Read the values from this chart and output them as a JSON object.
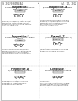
{
  "background_color": "#f5f5f5",
  "page_color": "#ffffff",
  "text_color": "#1a1a1a",
  "light_text": "#444444",
  "header_left": "US 2012/0184534 A1",
  "header_right": "Jul. 19, 2012",
  "page_number": "27",
  "divider_color": "#bbbbbb",
  "structure_color": "#222222",
  "sections": [
    {
      "id": "tl",
      "title": "Preparation 4",
      "col": 0,
      "row": 0
    },
    {
      "id": "tr",
      "title": "Preparation 14",
      "col": 1,
      "row": 0
    },
    {
      "id": "ml",
      "title": "Preparation 8",
      "col": 0,
      "row": 1
    },
    {
      "id": "mr",
      "title": "Example 17",
      "col": 1,
      "row": 1
    },
    {
      "id": "bl",
      "title": "Preparation 12",
      "col": 0,
      "row": 2
    },
    {
      "id": "br",
      "title": "Compound 7",
      "col": 1,
      "row": 2
    }
  ]
}
